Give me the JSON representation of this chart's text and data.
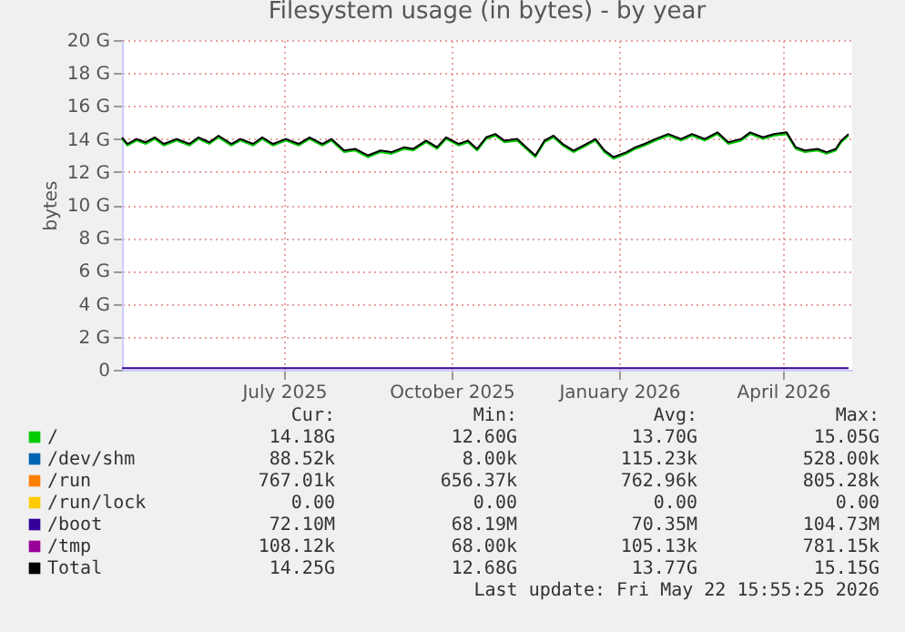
{
  "chart_data": {
    "type": "line",
    "title": "Filesystem usage (in bytes) - by year",
    "ylabel": "bytes",
    "xlim": [
      "2025-04-03",
      "2026-05-09"
    ],
    "xticks": [
      {
        "value": "2025-07-01",
        "label": "July 2025"
      },
      {
        "value": "2025-10-01",
        "label": "October 2025"
      },
      {
        "value": "2026-01-01",
        "label": "January 2026"
      },
      {
        "value": "2026-04-01",
        "label": "April 2026"
      }
    ],
    "ylim": [
      0,
      20
    ],
    "yticks": [
      0,
      {
        "value": 2,
        "label": "2 G"
      },
      {
        "value": 4,
        "label": "4 G"
      },
      {
        "value": 6,
        "label": "6 G"
      },
      {
        "value": 8,
        "label": "8 G"
      },
      {
        "value": 10,
        "label": "10 G"
      },
      {
        "value": 12,
        "label": "12 G"
      },
      {
        "value": 14,
        "label": "14 G"
      },
      {
        "value": 16,
        "label": "16 G"
      },
      {
        "value": 18,
        "label": "18 G"
      },
      {
        "value": 20,
        "label": "20 G"
      }
    ],
    "grid": true,
    "legend": "bottom",
    "line_style": "solid",
    "marker": "none",
    "x": [
      "2025-04-03",
      "2025-04-06",
      "2025-04-11",
      "2025-04-16",
      "2025-04-21",
      "2025-04-26",
      "2025-05-03",
      "2025-05-10",
      "2025-05-15",
      "2025-05-21",
      "2025-05-26",
      "2025-06-02",
      "2025-06-07",
      "2025-06-14",
      "2025-06-19",
      "2025-06-25",
      "2025-07-02",
      "2025-07-09",
      "2025-07-15",
      "2025-07-22",
      "2025-07-27",
      "2025-08-03",
      "2025-08-09",
      "2025-08-16",
      "2025-08-23",
      "2025-08-29",
      "2025-09-05",
      "2025-09-10",
      "2025-09-17",
      "2025-09-23",
      "2025-09-28",
      "2025-10-05",
      "2025-10-10",
      "2025-10-15",
      "2025-10-20",
      "2025-10-25",
      "2025-10-30",
      "2025-11-06",
      "2025-11-11",
      "2025-11-16",
      "2025-11-21",
      "2025-11-26",
      "2025-12-01",
      "2025-12-07",
      "2025-12-14",
      "2025-12-19",
      "2025-12-24",
      "2025-12-29",
      "2026-01-05",
      "2026-01-10",
      "2026-01-15",
      "2026-01-21",
      "2026-01-28",
      "2026-02-04",
      "2026-02-10",
      "2026-02-17",
      "2026-02-24",
      "2026-03-02",
      "2026-03-09",
      "2026-03-14",
      "2026-03-21",
      "2026-03-27",
      "2026-04-03",
      "2026-04-08",
      "2026-04-13",
      "2026-04-20",
      "2026-04-25",
      "2026-04-30",
      "2026-05-03",
      "2026-05-07"
    ],
    "series": [
      {
        "name": "/",
        "color": "#00cc00",
        "values": [
          14.0,
          13.6,
          13.9,
          13.7,
          14.0,
          13.6,
          13.9,
          13.6,
          14.0,
          13.7,
          14.1,
          13.6,
          13.9,
          13.6,
          14.0,
          13.6,
          13.9,
          13.6,
          14.0,
          13.6,
          13.9,
          13.2,
          13.3,
          12.9,
          13.2,
          13.1,
          13.4,
          13.3,
          13.8,
          13.4,
          14.0,
          13.6,
          13.8,
          13.3,
          14.0,
          14.2,
          13.8,
          13.9,
          13.4,
          12.9,
          13.8,
          14.1,
          13.6,
          13.2,
          13.6,
          13.9,
          13.2,
          12.8,
          13.1,
          13.4,
          13.6,
          13.9,
          14.2,
          13.9,
          14.2,
          13.9,
          14.3,
          13.7,
          13.9,
          14.3,
          14.0,
          14.2,
          14.3,
          13.4,
          13.2,
          13.3,
          13.1,
          13.3,
          13.8,
          14.2
        ]
      },
      {
        "name": "/dev/shm",
        "color": "#0066b3",
        "values": [
          null,
          null,
          null,
          null,
          null,
          null,
          null,
          null,
          null,
          null,
          null,
          null,
          null,
          null,
          null,
          null,
          null,
          null,
          null,
          null,
          null,
          null,
          null,
          null,
          null,
          null,
          null,
          null,
          null,
          null,
          null,
          null,
          null,
          null,
          null,
          null,
          null,
          null,
          null,
          null,
          null,
          null,
          null,
          null,
          null,
          null,
          null,
          null,
          null,
          null,
          null,
          null,
          null,
          null,
          null,
          null,
          null,
          null,
          null,
          null,
          null,
          null,
          null,
          null,
          null,
          null,
          null,
          null,
          null,
          null
        ]
      },
      {
        "name": "/run",
        "color": "#ff8000",
        "values": [
          null,
          null,
          null,
          null,
          null,
          null,
          null,
          null,
          null,
          null,
          null,
          null,
          null,
          null,
          null,
          null,
          null,
          null,
          null,
          null,
          null,
          null,
          null,
          null,
          null,
          null,
          null,
          null,
          null,
          null,
          null,
          null,
          null,
          null,
          null,
          null,
          null,
          null,
          null,
          null,
          null,
          null,
          null,
          null,
          null,
          null,
          null,
          null,
          null,
          null,
          null,
          null,
          null,
          null,
          null,
          null,
          null,
          null,
          null,
          null,
          null,
          null,
          null,
          null,
          null,
          null,
          null,
          null,
          null,
          null
        ]
      },
      {
        "name": "/run/lock",
        "color": "#ffcc00",
        "values": [
          null,
          null,
          null,
          null,
          null,
          null,
          null,
          null,
          null,
          null,
          null,
          null,
          null,
          null,
          null,
          null,
          null,
          null,
          null,
          null,
          null,
          null,
          null,
          null,
          null,
          null,
          null,
          null,
          null,
          null,
          null,
          null,
          null,
          null,
          null,
          null,
          null,
          null,
          null,
          null,
          null,
          null,
          null,
          null,
          null,
          null,
          null,
          null,
          null,
          null,
          null,
          null,
          null,
          null,
          null,
          null,
          null,
          null,
          null,
          null,
          null,
          null,
          null,
          null,
          null,
          null,
          null,
          null,
          null,
          null
        ]
      },
      {
        "name": "/boot",
        "color": "#330099",
        "x": [
          "2025-04-03",
          "2026-05-07"
        ],
        "values": [
          0.1,
          0.1
        ]
      },
      {
        "name": "/tmp",
        "color": "#990099",
        "values": [
          null,
          null,
          null,
          null,
          null,
          null,
          null,
          null,
          null,
          null,
          null,
          null,
          null,
          null,
          null,
          null,
          null,
          null,
          null,
          null,
          null,
          null,
          null,
          null,
          null,
          null,
          null,
          null,
          null,
          null,
          null,
          null,
          null,
          null,
          null,
          null,
          null,
          null,
          null,
          null,
          null,
          null,
          null,
          null,
          null,
          null,
          null,
          null,
          null,
          null,
          null,
          null,
          null,
          null,
          null,
          null,
          null,
          null,
          null,
          null,
          null,
          null,
          null,
          null,
          null,
          null,
          null,
          null,
          null,
          null
        ]
      },
      {
        "name": "Total",
        "color": "#000000",
        "values": [
          14.1,
          13.7,
          14.0,
          13.8,
          14.1,
          13.7,
          14.0,
          13.7,
          14.1,
          13.8,
          14.2,
          13.7,
          14.0,
          13.7,
          14.1,
          13.7,
          14.0,
          13.7,
          14.1,
          13.7,
          14.0,
          13.3,
          13.4,
          13.0,
          13.3,
          13.2,
          13.5,
          13.4,
          13.9,
          13.5,
          14.1,
          13.7,
          13.9,
          13.4,
          14.1,
          14.3,
          13.9,
          14.0,
          13.5,
          13.0,
          13.9,
          14.2,
          13.7,
          13.3,
          13.7,
          14.0,
          13.3,
          12.9,
          13.2,
          13.5,
          13.7,
          14.0,
          14.3,
          14.0,
          14.3,
          14.0,
          14.4,
          13.8,
          14.0,
          14.4,
          14.1,
          14.3,
          14.4,
          13.5,
          13.3,
          13.4,
          13.2,
          13.4,
          13.9,
          14.3
        ]
      }
    ],
    "annotations": [
      "Cur:",
      "Min:",
      "Avg:",
      "Max:",
      "14.18G",
      "12.60G",
      "13.70G",
      "15.05G",
      "88.52k",
      "8.00k",
      "115.23k",
      "528.00k",
      "767.01k",
      "656.37k",
      "762.96k",
      "805.28k",
      "0.00",
      "0.00",
      "0.00",
      "0.00",
      "72.10M",
      "68.19M",
      "70.35M",
      "104.73M",
      "108.12k",
      "68.00k",
      "105.13k",
      "781.15k",
      "14.25G",
      "12.68G",
      "13.77G",
      "15.15G",
      "Last update: Fri May 22 15:55:25 2026"
    ]
  }
}
